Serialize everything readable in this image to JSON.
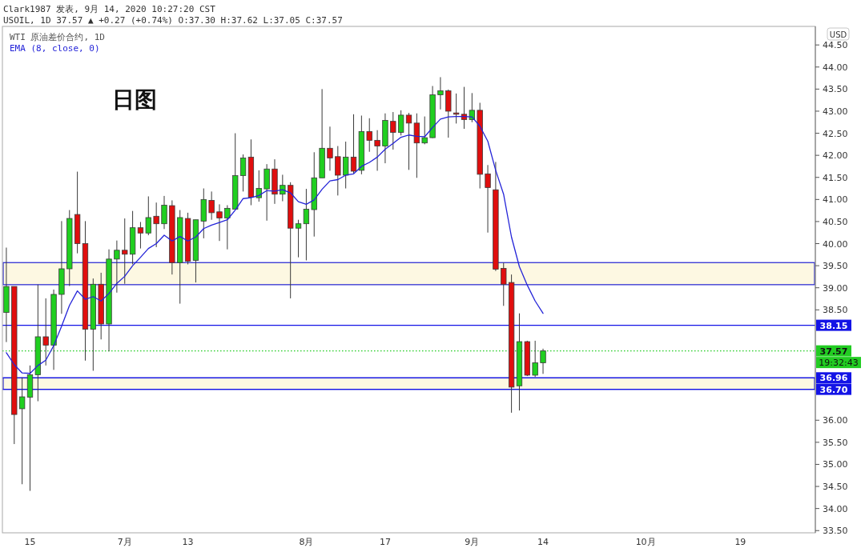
{
  "chart_data": {
    "type": "candlestick",
    "title": "Clark1987 发表, 9月 14, 2020 10:27:20 CST",
    "subtitle": "USOIL, 1D 37.57 ▲ +0.27 (+0.74%) O:37.30 H:37.62 L:37.05 C:37.57",
    "ylabel": "USD",
    "annotations": [
      "日图",
      "19:32:43"
    ],
    "categories": [
      null,
      null,
      null,
      "15",
      null,
      null,
      null,
      null,
      null,
      null,
      null,
      null,
      null,
      null,
      null,
      "7月",
      null,
      null,
      null,
      null,
      null,
      null,
      null,
      "13",
      null,
      null,
      null,
      null,
      null,
      null,
      null,
      null,
      null,
      null,
      null,
      null,
      null,
      null,
      "8月",
      null,
      null,
      null,
      null,
      null,
      null,
      null,
      null,
      null,
      "17",
      null,
      null,
      null,
      null,
      null,
      null,
      null,
      null,
      null,
      null,
      "9月",
      null,
      null,
      null,
      null,
      null,
      null,
      null,
      null,
      "14",
      null,
      null,
      null,
      null,
      null,
      null,
      null,
      null,
      null,
      null,
      null,
      null,
      "10月",
      null,
      null,
      null,
      null,
      null,
      null,
      null,
      null,
      null,
      null,
      null,
      "19",
      null,
      null,
      null,
      null,
      null,
      null,
      null,
      null,
      null
    ],
    "series": [
      {
        "name": "WTI 原油差价合约, 1D",
        "ohlc": [
          [
            38.44,
            39.91,
            37.77,
            39.03
          ],
          [
            39.03,
            39.03,
            35.46,
            36.13
          ],
          [
            36.26,
            36.97,
            34.55,
            36.53
          ],
          [
            36.52,
            37.24,
            34.4,
            37.03
          ],
          [
            37.03,
            39.07,
            36.43,
            37.89
          ],
          [
            37.89,
            38.76,
            37.24,
            37.7
          ],
          [
            37.7,
            38.96,
            37.14,
            38.85
          ],
          [
            38.85,
            40.51,
            38.41,
            39.43
          ],
          [
            39.43,
            40.76,
            39.04,
            40.57
          ],
          [
            40.66,
            41.63,
            39.78,
            40.0
          ],
          [
            40.0,
            40.51,
            37.35,
            38.06
          ],
          [
            38.06,
            39.21,
            37.12,
            39.08
          ],
          [
            39.08,
            39.34,
            37.83,
            38.18
          ],
          [
            38.18,
            39.87,
            37.56,
            39.65
          ],
          [
            39.65,
            40.07,
            38.89,
            39.85
          ],
          [
            39.85,
            40.57,
            39.09,
            39.76
          ],
          [
            39.76,
            40.74,
            39.53,
            40.36
          ],
          [
            40.36,
            40.49,
            39.89,
            40.24
          ],
          [
            40.24,
            41.07,
            40.19,
            40.59
          ],
          [
            40.62,
            40.93,
            39.92,
            40.45
          ],
          [
            40.45,
            41.08,
            40.33,
            40.87
          ],
          [
            40.86,
            40.98,
            39.3,
            39.57
          ],
          [
            39.57,
            40.76,
            38.64,
            40.59
          ],
          [
            40.57,
            40.7,
            39.53,
            39.6
          ],
          [
            39.62,
            40.54,
            39.12,
            40.54
          ],
          [
            40.51,
            41.25,
            40.12,
            41.0
          ],
          [
            40.98,
            41.18,
            40.54,
            40.7
          ],
          [
            40.72,
            40.89,
            40.06,
            40.58
          ],
          [
            40.58,
            40.87,
            39.87,
            40.8
          ],
          [
            40.78,
            42.5,
            40.78,
            41.54
          ],
          [
            41.54,
            42.02,
            41.18,
            41.94
          ],
          [
            41.96,
            42.36,
            40.87,
            41.05
          ],
          [
            41.04,
            41.66,
            40.95,
            41.25
          ],
          [
            41.24,
            41.8,
            40.52,
            41.69
          ],
          [
            41.69,
            41.91,
            40.9,
            41.12
          ],
          [
            41.12,
            41.56,
            40.96,
            41.32
          ],
          [
            41.32,
            41.39,
            38.76,
            40.35
          ],
          [
            40.35,
            40.54,
            39.69,
            40.45
          ],
          [
            40.45,
            41.24,
            39.62,
            40.78
          ],
          [
            40.77,
            42.07,
            40.16,
            41.49
          ],
          [
            41.49,
            43.5,
            41.49,
            42.16
          ],
          [
            42.16,
            42.65,
            41.65,
            41.94
          ],
          [
            41.97,
            42.21,
            41.09,
            41.55
          ],
          [
            41.55,
            42.31,
            41.25,
            41.96
          ],
          [
            41.96,
            42.93,
            41.59,
            41.64
          ],
          [
            41.66,
            42.9,
            41.57,
            42.54
          ],
          [
            42.54,
            42.84,
            42.08,
            42.34
          ],
          [
            42.34,
            42.57,
            41.65,
            42.21
          ],
          [
            42.21,
            42.95,
            41.82,
            42.79
          ],
          [
            42.77,
            42.98,
            42.13,
            42.52
          ],
          [
            42.52,
            43.02,
            42.45,
            42.91
          ],
          [
            42.91,
            42.96,
            41.67,
            42.73
          ],
          [
            42.73,
            42.95,
            41.49,
            42.28
          ],
          [
            42.28,
            42.88,
            42.25,
            42.4
          ],
          [
            42.4,
            43.57,
            42.39,
            43.37
          ],
          [
            43.37,
            43.77,
            43.04,
            43.46
          ],
          [
            43.46,
            43.49,
            42.4,
            43.0
          ],
          [
            42.96,
            43.4,
            42.72,
            42.93
          ],
          [
            42.93,
            43.55,
            42.6,
            42.81
          ],
          [
            42.81,
            43.41,
            42.75,
            43.02
          ],
          [
            43.02,
            43.19,
            41.25,
            41.57
          ],
          [
            41.58,
            41.78,
            40.25,
            41.27
          ],
          [
            41.22,
            41.85,
            39.38,
            39.42
          ],
          [
            39.44,
            39.57,
            38.59,
            39.08
          ],
          [
            39.12,
            39.3,
            36.17,
            36.75
          ],
          [
            36.78,
            38.42,
            36.22,
            37.78
          ],
          [
            37.78,
            37.8,
            37.0,
            37.02
          ],
          [
            37.02,
            37.8,
            36.98,
            37.3
          ],
          [
            37.3,
            37.62,
            37.05,
            37.57
          ],
          null,
          null,
          null,
          null,
          null,
          null,
          null,
          null,
          null,
          null,
          null,
          null,
          null,
          null,
          null,
          null,
          null,
          null,
          null,
          null,
          null,
          null,
          null,
          null,
          null,
          null,
          null,
          null,
          null,
          null,
          null,
          null,
          null,
          null
        ],
        "colors": [
          "#20cf20",
          "#e00e0e",
          "#20cf20",
          "#20cf20",
          "#20cf20",
          "#e00e0e",
          "#20cf20",
          "#20cf20",
          "#20cf20",
          "#e00e0e",
          "#e00e0e",
          "#20cf20",
          "#e00e0e",
          "#20cf20",
          "#20cf20",
          "#e00e0e",
          "#20cf20",
          "#e00e0e",
          "#20cf20",
          "#e00e0e",
          "#20cf20",
          "#e00e0e",
          "#20cf20",
          "#e00e0e",
          "#20cf20",
          "#20cf20",
          "#e00e0e",
          "#e00e0e",
          "#20cf20",
          "#20cf20",
          "#20cf20",
          "#e00e0e",
          "#20cf20",
          "#20cf20",
          "#e00e0e",
          "#20cf20",
          "#e00e0e",
          "#20cf20",
          "#20cf20",
          "#20cf20",
          "#20cf20",
          "#e00e0e",
          "#e00e0e",
          "#20cf20",
          "#e00e0e",
          "#20cf20",
          "#e00e0e",
          "#e00e0e",
          "#20cf20",
          "#e00e0e",
          "#20cf20",
          "#e00e0e",
          "#e00e0e",
          "#20cf20",
          "#20cf20",
          "#20cf20",
          "#e00e0e",
          "#e00e0e",
          "#e00e0e",
          "#20cf20",
          "#e00e0e",
          "#e00e0e",
          "#e00e0e",
          "#e00e0e",
          "#e00e0e",
          "#20cf20",
          "#e00e0e",
          "#20cf20",
          "#20cf20",
          null,
          null,
          null,
          null,
          null,
          null,
          null,
          null,
          null,
          null,
          null,
          null,
          null,
          null,
          null,
          null,
          null,
          null,
          null,
          null,
          null,
          null,
          null,
          null,
          null,
          null,
          null,
          null,
          null,
          null,
          null,
          null,
          null,
          null
        ]
      },
      {
        "name": "EMA (8, close, 0)",
        "type": "line",
        "color": "#2424d8",
        "values": [
          37.53,
          37.26,
          37.07,
          37.06,
          37.24,
          37.36,
          37.69,
          38.13,
          38.6,
          38.93,
          38.74,
          38.8,
          38.7,
          38.87,
          39.1,
          39.26,
          39.5,
          39.69,
          39.89,
          40.0,
          40.19,
          40.06,
          40.16,
          40.06,
          40.15,
          40.34,
          40.42,
          40.48,
          40.54,
          40.76,
          41.02,
          41.04,
          41.09,
          41.2,
          41.19,
          41.22,
          41.15,
          40.95,
          40.89,
          40.99,
          41.23,
          41.42,
          41.45,
          41.55,
          41.58,
          41.75,
          41.84,
          41.96,
          42.14,
          42.27,
          42.41,
          42.46,
          42.43,
          42.42,
          42.63,
          42.82,
          42.87,
          42.88,
          42.88,
          42.87,
          42.66,
          42.32,
          41.66,
          41.12,
          40.15,
          39.48,
          39.06,
          38.7,
          38.42,
          null,
          null,
          null,
          null,
          null,
          null,
          null,
          null,
          null,
          null,
          null,
          null,
          null,
          null,
          null,
          null,
          null,
          null,
          null,
          null,
          null,
          null,
          null,
          null,
          null,
          null,
          null,
          null,
          null,
          null,
          null,
          null,
          null,
          null
        ]
      }
    ],
    "ylim": [
      33.45,
      44.92
    ],
    "yticks": [
      {
        "value": 33.5,
        "label": "33.50"
      },
      {
        "value": 34,
        "label": "34.00"
      },
      {
        "value": 34.5,
        "label": "34.50"
      },
      {
        "value": 35,
        "label": "35.00"
      },
      {
        "value": 35.5,
        "label": "35.50"
      },
      {
        "value": 36,
        "label": "36.00"
      },
      {
        "value": 38.5,
        "label": "38.50"
      },
      {
        "value": 39,
        "label": "39.00"
      },
      {
        "value": 39.5,
        "label": "39.50"
      },
      {
        "value": 40,
        "label": "40.00"
      },
      {
        "value": 40.5,
        "label": "40.50"
      },
      {
        "value": 41,
        "label": "41.00"
      },
      {
        "value": 41.5,
        "label": "41.50"
      },
      {
        "value": 42,
        "label": "42.00"
      },
      {
        "value": 42.5,
        "label": "42.50"
      },
      {
        "value": 43,
        "label": "43.00"
      },
      {
        "value": 43.5,
        "label": "43.50"
      },
      {
        "value": 44,
        "label": "44.00"
      },
      {
        "value": 44.5,
        "label": "44.50"
      }
    ],
    "legend": "top left",
    "bands": [
      {
        "axis": "y",
        "from": 39.07,
        "to": 39.57,
        "color": "#fdf8e2"
      },
      {
        "axis": "y",
        "from": 36.7,
        "to": 36.96,
        "color": "#fdf8e2"
      }
    ],
    "ref_lines": [
      {
        "axis": "y",
        "value": 38.15,
        "label": "38.15",
        "color": "#1414e6"
      },
      {
        "axis": "y",
        "value": 36.96,
        "label": "36.96",
        "color": "#1414e6"
      },
      {
        "axis": "y",
        "value": 36.7,
        "label": "36.70",
        "color": "#1414e6"
      },
      {
        "axis": "y",
        "value": 37.57,
        "label": "37.57",
        "color": "#22cc22",
        "line_style": "dotted"
      }
    ]
  }
}
